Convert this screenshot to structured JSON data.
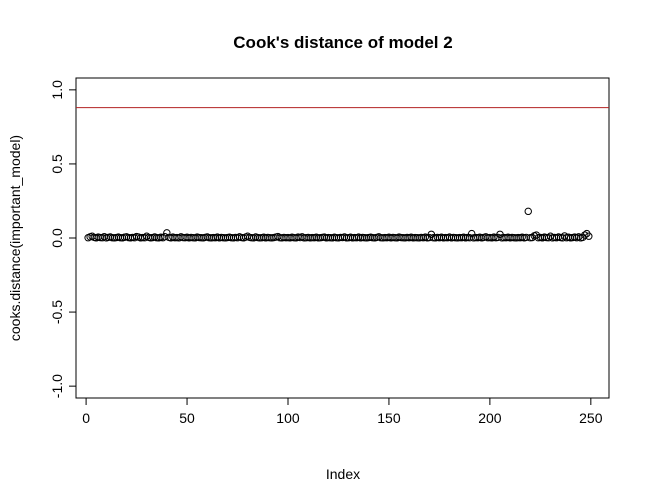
{
  "chart_data": {
    "type": "scatter",
    "title": "Cook's distance of model 2",
    "xlabel": "Index",
    "ylabel": "cooks.distance(important_model)",
    "xlim": [
      -5,
      259
    ],
    "ylim": [
      -1.08,
      1.08
    ],
    "x_ticks": [
      0,
      50,
      100,
      150,
      200,
      250
    ],
    "y_ticks": [
      -1.0,
      -0.5,
      0.0,
      0.5,
      1.0
    ],
    "x_tick_labels": [
      "0",
      "50",
      "100",
      "150",
      "200",
      "250"
    ],
    "y_tick_labels": [
      "-1.0",
      "-0.5",
      "0.0",
      "0.5",
      "1.0"
    ],
    "reference_line": {
      "y": 0.88,
      "color": "#b22222"
    },
    "marker": "open-circle",
    "grid": false,
    "series": [
      {
        "x": [
          1,
          2,
          3,
          4,
          5,
          6,
          7,
          8,
          9,
          10,
          11,
          12,
          13,
          14,
          15,
          16,
          17,
          18,
          19,
          20,
          21,
          22,
          23,
          24,
          25,
          26,
          27,
          28,
          29,
          30,
          31,
          32,
          33,
          34,
          35,
          36,
          37,
          38,
          39,
          40,
          41,
          42,
          43,
          44,
          45,
          46,
          47,
          48,
          49,
          50,
          51,
          52,
          53,
          54,
          55,
          56,
          57,
          58,
          59,
          60,
          61,
          62,
          63,
          64,
          65,
          66,
          67,
          68,
          69,
          70,
          71,
          72,
          73,
          74,
          75,
          76,
          77,
          78,
          79,
          80,
          81,
          82,
          83,
          84,
          85,
          86,
          87,
          88,
          89,
          90,
          91,
          92,
          93,
          94,
          95,
          96,
          97,
          98,
          99,
          100,
          101,
          102,
          103,
          104,
          105,
          106,
          107,
          108,
          109,
          110,
          111,
          112,
          113,
          114,
          115,
          116,
          117,
          118,
          119,
          120,
          121,
          122,
          123,
          124,
          125,
          126,
          127,
          128,
          129,
          130,
          131,
          132,
          133,
          134,
          135,
          136,
          137,
          138,
          139,
          140,
          141,
          142,
          143,
          144,
          145,
          146,
          147,
          148,
          149,
          150,
          151,
          152,
          153,
          154,
          155,
          156,
          157,
          158,
          159,
          160,
          161,
          162,
          163,
          164,
          165,
          166,
          167,
          168,
          169,
          170,
          171,
          172,
          173,
          174,
          175,
          176,
          177,
          178,
          179,
          180,
          181,
          182,
          183,
          184,
          185,
          186,
          187,
          188,
          189,
          190,
          191,
          192,
          193,
          194,
          195,
          196,
          197,
          198,
          199,
          200,
          201,
          202,
          203,
          204,
          205,
          206,
          207,
          208,
          209,
          210,
          211,
          212,
          213,
          214,
          215,
          216,
          217,
          218,
          219,
          220,
          221,
          222,
          223,
          224,
          225,
          226,
          227,
          228,
          229,
          230,
          231,
          232,
          233,
          234,
          235,
          236,
          237,
          238,
          239,
          240,
          241,
          242,
          243,
          244,
          245,
          246,
          247,
          248,
          249
        ],
        "y": [
          0.002,
          0.008,
          0.012,
          0.004,
          0.001,
          0.006,
          0.003,
          0.002,
          0.009,
          0.001,
          0.004,
          0.007,
          0.002,
          0.001,
          0.003,
          0.006,
          0.002,
          0.001,
          0.005,
          0.008,
          0.003,
          0.001,
          0.004,
          0.002,
          0.01,
          0.006,
          0.001,
          0.003,
          0.002,
          0.012,
          0.004,
          0.001,
          0.003,
          0.007,
          0.002,
          0.001,
          0.005,
          0.002,
          0.009,
          0.035,
          0.004,
          0.001,
          0.006,
          0.002,
          0.003,
          0.001,
          0.008,
          0.003,
          0.002,
          0.005,
          0.001,
          0.004,
          0.002,
          0.001,
          0.006,
          0.003,
          0.002,
          0.001,
          0.004,
          0.007,
          0.002,
          0.001,
          0.003,
          0.002,
          0.006,
          0.001,
          0.004,
          0.002,
          0.001,
          0.003,
          0.005,
          0.002,
          0.001,
          0.004,
          0.002,
          0.008,
          0.003,
          0.001,
          0.006,
          0.012,
          0.004,
          0.002,
          0.001,
          0.007,
          0.003,
          0.001,
          0.002,
          0.005,
          0.001,
          0.004,
          0.002,
          0.001,
          0.003,
          0.006,
          0.01,
          0.002,
          0.001,
          0.004,
          0.002,
          0.003,
          0.001,
          0.005,
          0.002,
          0.001,
          0.006,
          0.003,
          0.008,
          0.001,
          0.002,
          0.004,
          0.001,
          0.003,
          0.002,
          0.005,
          0.001,
          0.002,
          0.004,
          0.006,
          0.001,
          0.003,
          0.002,
          0.001,
          0.005,
          0.002,
          0.001,
          0.004,
          0.003,
          0.007,
          0.001,
          0.002,
          0.005,
          0.001,
          0.003,
          0.002,
          0.006,
          0.001,
          0.004,
          0.002,
          0.001,
          0.003,
          0.005,
          0.002,
          0.001,
          0.004,
          0.008,
          0.002,
          0.001,
          0.003,
          0.002,
          0.005,
          0.001,
          0.004,
          0.002,
          0.001,
          0.006,
          0.003,
          0.002,
          0.001,
          0.004,
          0.002,
          0.005,
          0.001,
          0.003,
          0.002,
          0.001,
          0.004,
          0.002,
          0.006,
          0.001,
          0.003,
          0.025,
          0.002,
          0.001,
          0.004,
          0.002,
          0.005,
          0.001,
          0.003,
          0.002,
          0.006,
          0.001,
          0.004,
          0.002,
          0.001,
          0.003,
          0.002,
          0.005,
          0.001,
          0.004,
          0.002,
          0.03,
          0.001,
          0.003,
          0.002,
          0.005,
          0.001,
          0.004,
          0.008,
          0.002,
          0.003,
          0.001,
          0.006,
          0.002,
          0.004,
          0.025,
          0.001,
          0.003,
          0.002,
          0.005,
          0.001,
          0.004,
          0.002,
          0.001,
          0.003,
          0.002,
          0.005,
          0.001,
          0.004,
          0.18,
          0.002,
          0.003,
          0.015,
          0.02,
          0.002,
          0.004,
          0.001,
          0.006,
          0.003,
          0.002,
          0.012,
          0.001,
          0.004,
          0.002,
          0.007,
          0.003,
          0.001,
          0.014,
          0.002,
          0.005,
          0.001,
          0.003,
          0.006,
          0.002,
          0.008,
          0.001,
          0.004,
          0.02,
          0.03,
          0.012
        ]
      }
    ]
  }
}
